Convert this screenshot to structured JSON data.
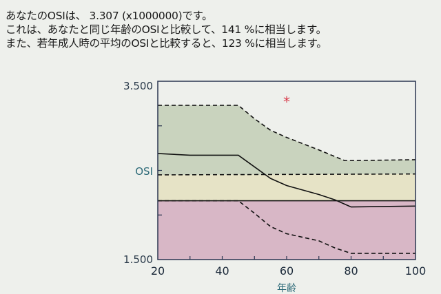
{
  "text": {
    "line1": "あなたのOSIは、 3.307 (x1000000)です。",
    "line2": "これは、あなたと同じ年齢のOSIと比較して、141 %に相当します。",
    "line3": "また、若年成人時の平均のOSIと比較すると、123 %に相当します。"
  },
  "chart_data": {
    "type": "area",
    "title": "",
    "xlabel": "年齢",
    "ylabel": "OSI",
    "xlim": [
      20,
      100
    ],
    "ylim": [
      1.5,
      3.5
    ],
    "x_ticks": [
      "20",
      "40",
      "60",
      "80",
      "100"
    ],
    "y_tick_labels": [
      "3.500",
      "1.500"
    ],
    "y_minor_ticks": [
      3.0,
      2.5,
      2.0
    ],
    "grid": false,
    "series": [
      {
        "name": "upper-dashed",
        "style": "dashed",
        "x": [
          20,
          45,
          50,
          55,
          60,
          70,
          78,
          80,
          100
        ],
        "y": [
          3.23,
          3.23,
          3.08,
          2.95,
          2.87,
          2.73,
          2.61,
          2.61,
          2.62
        ]
      },
      {
        "name": "age-mean",
        "style": "solid",
        "x": [
          20,
          25,
          30,
          45,
          50,
          55,
          60,
          70,
          75,
          80,
          100
        ],
        "y": [
          2.69,
          2.68,
          2.67,
          2.67,
          2.54,
          2.41,
          2.33,
          2.23,
          2.17,
          2.09,
          2.1
        ]
      },
      {
        "name": "young-adult-upper",
        "style": "dashed",
        "x": [
          20,
          100
        ],
        "y": [
          2.45,
          2.46
        ]
      },
      {
        "name": "young-adult-lower",
        "style": "solid",
        "x": [
          20,
          100
        ],
        "y": [
          2.16,
          2.16
        ]
      },
      {
        "name": "lower-dashed",
        "style": "dashed",
        "x": [
          20,
          45,
          50,
          55,
          60,
          70,
          75,
          80,
          100
        ],
        "y": [
          2.16,
          2.16,
          2.02,
          1.87,
          1.79,
          1.71,
          1.63,
          1.57,
          1.57
        ]
      }
    ],
    "marker": {
      "name": "あなた",
      "x": 60,
      "y": 3.307,
      "symbol": "*",
      "color": "#d83a4a"
    },
    "colors": {
      "upper_band": "#c9d3be",
      "middle_band": "#e6e3c6",
      "lower_band": "#d8b7c6"
    }
  }
}
